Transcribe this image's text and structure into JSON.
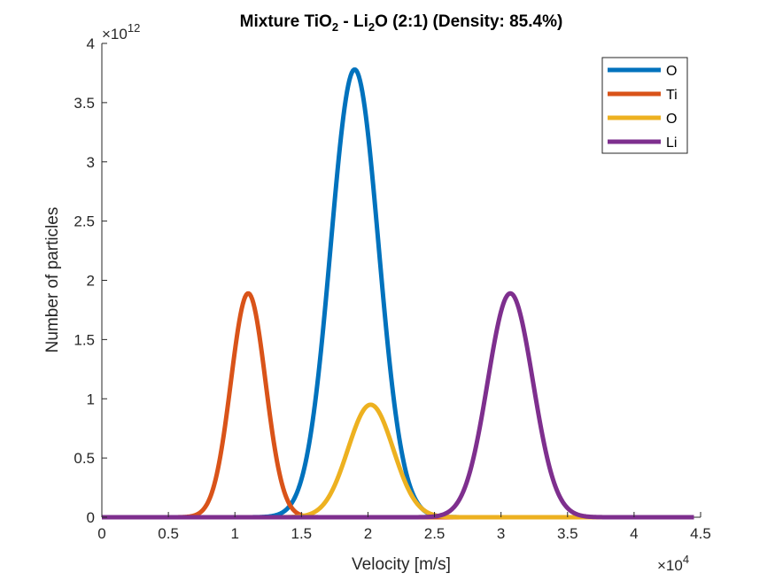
{
  "chart_data": {
    "type": "line",
    "title": "Mixture TiO2 - Li2O (2:1) (Density: 85.4%)",
    "title_parts": {
      "pre": "Mixture TiO",
      "sub1": "2",
      "mid": " - Li",
      "sub2": "2",
      "post": "O (2:1) (Density: 85.4%)"
    },
    "xlabel": "Velocity [m/s]",
    "ylabel": "Number of particles",
    "x_multiplier": {
      "base": "×10",
      "exp": "4"
    },
    "y_multiplier": {
      "base": "×10",
      "exp": "12"
    },
    "xlim": [
      0,
      4.5
    ],
    "ylim": [
      0,
      4
    ],
    "x_ticks": [
      0,
      0.5,
      1,
      1.5,
      2,
      2.5,
      3,
      3.5,
      4,
      4.5
    ],
    "x_tick_labels": [
      "0",
      "0.5",
      "1",
      "1.5",
      "2",
      "2.5",
      "3",
      "3.5",
      "4",
      "4.5"
    ],
    "y_ticks": [
      0,
      0.5,
      1,
      1.5,
      2,
      2.5,
      3,
      3.5,
      4
    ],
    "y_tick_labels": [
      "0",
      "0.5",
      "1",
      "1.5",
      "2",
      "2.5",
      "3",
      "3.5",
      "4"
    ],
    "x_data_max": 4.45,
    "grid": false,
    "legend_position": "top-right",
    "series": [
      {
        "name": "O",
        "color": "#0072BD",
        "shape": "gaussian",
        "peak_x": 1.9,
        "peak_y": 3.78,
        "sigma": 0.18
      },
      {
        "name": "Ti",
        "color": "#D95319",
        "shape": "gaussian",
        "peak_x": 1.1,
        "peak_y": 1.89,
        "sigma": 0.13
      },
      {
        "name": "O",
        "color": "#EDB120",
        "shape": "gaussian",
        "peak_x": 2.02,
        "peak_y": 0.95,
        "sigma": 0.17
      },
      {
        "name": "Li",
        "color": "#7E2F8E",
        "shape": "gaussian",
        "peak_x": 3.07,
        "peak_y": 1.89,
        "sigma": 0.17
      }
    ]
  }
}
